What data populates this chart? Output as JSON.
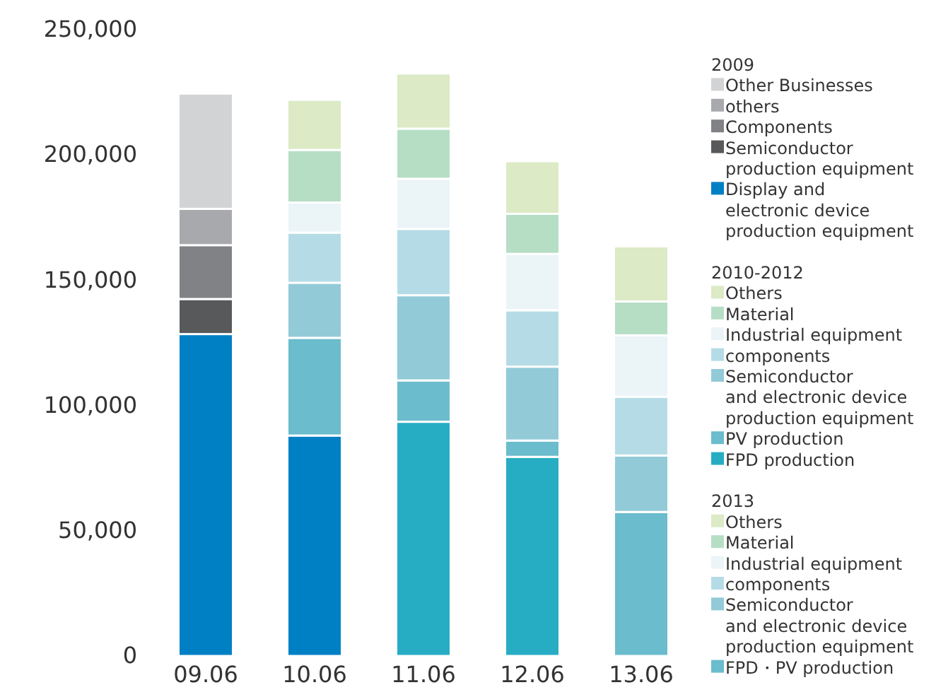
{
  "chart_data": {
    "type": "bar",
    "stacked": true,
    "categories": [
      "09.06",
      "10.06",
      "11.06",
      "12.06",
      "13.06"
    ],
    "ylim": [
      0,
      250000
    ],
    "yticks": [
      {
        "value": 0,
        "label": "0"
      },
      {
        "value": 50000,
        "label": "50,000"
      },
      {
        "value": 100000,
        "label": "100,000"
      },
      {
        "value": 150000,
        "label": "150,000"
      },
      {
        "value": 200000,
        "label": "200,000"
      },
      {
        "value": 250000,
        "label": "250,000"
      }
    ],
    "grid": false,
    "legend": "right",
    "annotations": [
      "2009",
      "2010-2012",
      "2013"
    ],
    "series": [
      {
        "name": "Display and\nelectronic device\nproduction equipment",
        "color": "#0080c4",
        "values": [
          128500,
          null,
          null,
          null,
          null
        ]
      },
      {
        "name": "Semiconductor\nproduction equipment",
        "color": "#58595b",
        "values": [
          14000,
          null,
          null,
          null,
          null
        ]
      },
      {
        "name": "Components",
        "color": "#808285",
        "values": [
          21500,
          null,
          null,
          null,
          null
        ]
      },
      {
        "name": "others",
        "color": "#a7a9ac",
        "values": [
          14500,
          null,
          null,
          null,
          null
        ]
      },
      {
        "name": "Other Businesses",
        "color": "#d2d3d5",
        "values": [
          46000,
          null,
          null,
          null,
          null
        ]
      },
      {
        "name": "FPD production",
        "color": "#27adc3",
        "colors": [
          null,
          "#0080c4",
          "#27adc3",
          "#27adc3",
          null
        ],
        "values": [
          null,
          88000,
          93500,
          79500,
          null
        ]
      },
      {
        "name": "PV production",
        "color": "#6bbccc",
        "values": [
          null,
          39000,
          16500,
          6500,
          null
        ]
      },
      {
        "name": "Semiconductor\nand electronic device\nproduction equipment",
        "color": "#92cad8",
        "values": [
          null,
          22000,
          34000,
          29500,
          null
        ]
      },
      {
        "name": "components",
        "color": "#b5dce6",
        "values": [
          null,
          20000,
          26500,
          22500,
          null
        ]
      },
      {
        "name": "Industrial equipment",
        "color": "#ebf4f7",
        "values": [
          null,
          12000,
          20000,
          22500,
          null
        ]
      },
      {
        "name": "Material",
        "color": "#b6dec5",
        "values": [
          null,
          21000,
          20000,
          16000,
          null
        ]
      },
      {
        "name": "Others",
        "color": "#dceac5",
        "values": [
          null,
          20000,
          22000,
          21000,
          null
        ]
      },
      {
        "name": "FPD・PV production",
        "color": "#6bbccc",
        "values": [
          null,
          null,
          null,
          null,
          57500
        ]
      },
      {
        "name": "Semiconductor\nand electronic device\nproduction equipment",
        "color": "#92cad8",
        "values": [
          null,
          null,
          null,
          null,
          22500
        ]
      },
      {
        "name": "components",
        "color": "#b5dce6",
        "values": [
          null,
          null,
          null,
          null,
          23500
        ]
      },
      {
        "name": "Industrial equipment",
        "color": "#ebf4f7",
        "values": [
          null,
          null,
          null,
          null,
          24500
        ]
      },
      {
        "name": "Material",
        "color": "#b6dec5",
        "values": [
          null,
          null,
          null,
          null,
          13500
        ]
      },
      {
        "name": "Others",
        "color": "#dceac5",
        "values": [
          null,
          null,
          null,
          null,
          22000
        ]
      }
    ]
  }
}
